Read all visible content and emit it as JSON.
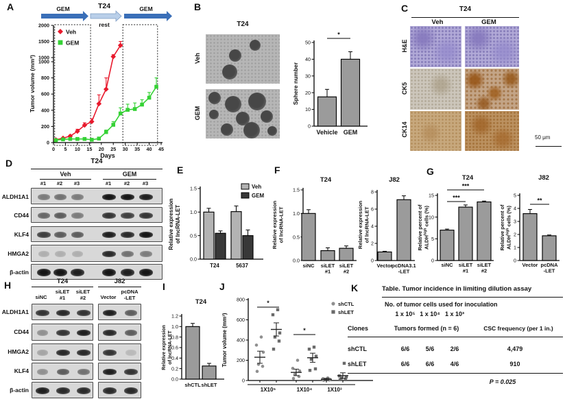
{
  "panels": {
    "A": {
      "letter": "A",
      "treatment_timeline": {
        "cell_line": "T24",
        "phases": [
          {
            "label": "GEM",
            "style": "dark"
          },
          {
            "label": "rest",
            "style": "light"
          },
          {
            "label": "GEM",
            "style": "dark"
          }
        ],
        "dark_arrow_color": "#3a6fb8",
        "light_arrow_color": "#b9cfe9"
      },
      "chart": {
        "type": "line",
        "xlabel": "Days",
        "ylabel": "Tumor volume (mm³)",
        "xlim": [
          0,
          45
        ],
        "x_ticks": [
          0,
          5,
          10,
          15,
          20,
          25,
          30,
          35,
          40,
          45
        ],
        "y_ticks_lower": [
          0,
          200,
          400,
          600,
          800,
          1000
        ],
        "y_ticks_upper": [
          1000,
          1500,
          2000
        ],
        "legend": [
          "Veh",
          "GEM"
        ],
        "series": [
          {
            "name": "Veh",
            "color": "#e8192c",
            "marker": "diamond",
            "x": [
              1,
              4,
              7,
              10,
              13,
              16,
              19,
              22,
              25,
              28
            ],
            "y": [
              35,
              55,
              80,
              140,
              215,
              260,
              480,
              660,
              1030,
              1380
            ],
            "err": [
              8,
              10,
              12,
              25,
              30,
              35,
              110,
              140,
              60,
              120
            ]
          },
          {
            "name": "GEM",
            "color": "#35d235",
            "marker": "square",
            "x": [
              1,
              4,
              7,
              10,
              13,
              16,
              19,
              22,
              25,
              28,
              31,
              34,
              37,
              40,
              43
            ],
            "y": [
              30,
              40,
              45,
              45,
              45,
              35,
              50,
              130,
              220,
              360,
              405,
              415,
              470,
              555,
              690
            ],
            "err": [
              6,
              8,
              8,
              8,
              8,
              8,
              10,
              25,
              40,
              70,
              70,
              75,
              60,
              65,
              110
            ]
          }
        ],
        "treatment_windows_days": [
          [
            0.5,
            15.5
          ],
          [
            29,
            43.5
          ]
        ]
      }
    },
    "B": {
      "letter": "B",
      "images": {
        "title": "T24",
        "rows": [
          {
            "label": "Veh"
          },
          {
            "label": "GEM"
          }
        ]
      },
      "chart": {
        "type": "bar",
        "ylabel": "Sphere number",
        "ylim": [
          0,
          50
        ],
        "y_ticks": [
          "0",
          "10",
          "20",
          "30",
          "40",
          "50"
        ],
        "categories": [
          "Vehicle",
          "GEM"
        ],
        "values": [
          17.5,
          40
        ],
        "errors": [
          4.5,
          4.5
        ],
        "bar_color": "#9b9b9b",
        "significance": "*"
      }
    },
    "C": {
      "letter": "C",
      "title": "T24",
      "columns": [
        "Veh",
        "GEM"
      ],
      "rows": [
        "H&E",
        "CK5",
        "CK14"
      ],
      "scale_bar": "50 μm"
    },
    "D": {
      "letter": "D",
      "title": "T24",
      "groups": [
        {
          "label": "Veh",
          "lanes": [
            "#1",
            "#2",
            "#3"
          ]
        },
        {
          "label": "GEM",
          "lanes": [
            "#1",
            "#2",
            "#3"
          ]
        }
      ],
      "blots": [
        {
          "protein": "ALDH1A1",
          "bands": [
            0.45,
            0.5,
            0.45,
            0.95,
            0.95,
            0.9
          ]
        },
        {
          "protein": "CD44",
          "bands": [
            0.55,
            0.6,
            0.45,
            0.8,
            0.75,
            0.8
          ]
        },
        {
          "protein": "KLF4",
          "bands": [
            0.75,
            0.6,
            0.6,
            0.9,
            0.85,
            0.95
          ]
        },
        {
          "protein": "HMGA2",
          "bands": [
            0.2,
            0.2,
            0.2,
            0.85,
            0.5,
            0.45
          ]
        },
        {
          "protein": "β-actin",
          "bands": [
            0.95,
            0.95,
            0.9,
            0.95,
            0.9,
            0.95
          ]
        }
      ]
    },
    "E": {
      "letter": "E",
      "chart": {
        "type": "grouped_bar",
        "ylabel_lines": [
          "Relative expression",
          "of lncRNA-LET"
        ],
        "ylim": [
          0,
          1.5
        ],
        "y_ticks": [
          "0.0",
          "0.5",
          "1.0",
          "1.5"
        ],
        "categories": [
          "T24",
          "5637"
        ],
        "series": [
          {
            "name": "Veh",
            "color": "#b3b3b3",
            "values": [
              1.0,
              1.01
            ],
            "errors": [
              0.08,
              0.12
            ]
          },
          {
            "name": "GEM",
            "color": "#383838",
            "values": [
              0.55,
              0.5
            ],
            "errors": [
              0.05,
              0.12
            ]
          }
        ]
      }
    },
    "F": {
      "letter": "F",
      "charts": [
        {
          "title": "T24",
          "ylabel_lines": [
            "Relative expression",
            "of lncRNA-LET"
          ],
          "ylim": [
            0,
            1.5
          ],
          "y_ticks": [
            "0.0",
            "0.5",
            "1.0",
            "1.5"
          ],
          "categories": [
            [
              "siNC"
            ],
            [
              "siLET",
              "#1"
            ],
            [
              "siLET",
              "#2"
            ]
          ],
          "values": [
            1.0,
            0.21,
            0.26
          ],
          "errors": [
            0.08,
            0.06,
            0.05
          ]
        },
        {
          "title": "J82",
          "ylabel_lines": [
            "Relative expression",
            "of lncRNA-LET"
          ],
          "ylim": [
            0,
            8
          ],
          "y_ticks": [
            "0",
            "2",
            "4",
            "6",
            "8"
          ],
          "categories": [
            [
              "Vector"
            ],
            [
              "pcDNA3.1",
              "-LET"
            ]
          ],
          "values": [
            1.0,
            7.1
          ],
          "errors": [
            0.08,
            0.45
          ]
        }
      ]
    },
    "G": {
      "letter": "G",
      "charts": [
        {
          "title": "T24",
          "ylabel_lines": [
            "Relative percent of",
            {
              "pre": "ALDH",
              "sup": "high",
              "post": " cells (%)"
            }
          ],
          "ylim": [
            0,
            15
          ],
          "y_ticks": [
            "0",
            "5",
            "10",
            "15"
          ],
          "categories": [
            [
              "siNC"
            ],
            [
              "siLET",
              "#1"
            ],
            [
              "siLET",
              "#2"
            ]
          ],
          "values": [
            7.0,
            12.3,
            13.5
          ],
          "errors": [
            0.25,
            0.5,
            0.2
          ],
          "significance": [
            {
              "from": 0,
              "to": 2,
              "label": "***"
            },
            {
              "from": 0,
              "to": 1,
              "label": "***"
            }
          ]
        },
        {
          "title": "J82",
          "ylabel_lines": [
            "Relative percent of",
            {
              "pre": "ALDH",
              "sup": "high",
              "post": " cells (%)"
            }
          ],
          "ylim": [
            0,
            5
          ],
          "y_ticks": [
            "0",
            "1",
            "2",
            "3",
            "4",
            "5"
          ],
          "categories": [
            [
              "Vector"
            ],
            [
              "pcDNA",
              "-LET"
            ]
          ],
          "values": [
            3.6,
            1.9
          ],
          "errors": [
            0.32,
            0.06
          ],
          "significance": [
            {
              "from": 0,
              "to": 1,
              "label": "**"
            }
          ]
        }
      ]
    },
    "H": {
      "letter": "H",
      "groups": [
        {
          "label": "T24",
          "lanes": [
            {
              "l1": "siNC"
            },
            {
              "l1": "siLET",
              "l2": "#1"
            },
            {
              "l1": "siLET",
              "l2": "#2"
            }
          ]
        },
        {
          "label": "J82",
          "lanes": [
            {
              "l1": "Vector"
            },
            {
              "l1": "pcDNA",
              "l2": "-LET"
            }
          ]
        }
      ],
      "blots": [
        {
          "protein": "ALDH1A1",
          "bands_t24": [
            0.8,
            0.85,
            0.8
          ],
          "bands_j82": [
            0.9,
            0.6
          ]
        },
        {
          "protein": "CD44",
          "bands_t24": [
            0.35,
            0.8,
            0.9
          ],
          "bands_j82": [
            0.85,
            0.6
          ]
        },
        {
          "protein": "HMGA2",
          "bands_t24": [
            0.25,
            0.85,
            0.85
          ],
          "bands_j82": [
            0.8,
            0.15
          ]
        },
        {
          "protein": "KLF4",
          "bands_t24": [
            0.35,
            0.6,
            0.5
          ],
          "bands_j82": [
            0.9,
            0.8
          ]
        },
        {
          "protein": "β-actin",
          "bands_t24": [
            0.9,
            0.85,
            0.85
          ],
          "bands_j82": [
            0.85,
            0.85
          ]
        }
      ]
    },
    "I": {
      "letter": "I",
      "chart": {
        "title": "T24",
        "ylabel_lines": [
          "Relative expression",
          "of lncRNA-LET"
        ],
        "ylim": [
          0,
          1.2
        ],
        "y_ticks": [
          "0.0",
          "0.2",
          "0.4",
          "0.6",
          "0.8",
          "1.0",
          "1.2"
        ],
        "categories": [
          [
            "shCTL"
          ],
          [
            "shLET"
          ]
        ],
        "values": [
          1.0,
          0.25
        ],
        "errors": [
          0.06,
          0.05
        ]
      }
    },
    "J": {
      "letter": "J",
      "chart": {
        "type": "scatter",
        "ylabel": "Tumor volume (mm³)",
        "ylim": [
          0,
          800
        ],
        "y_ticks": [
          0,
          200,
          400,
          600,
          800
        ],
        "groups": [
          "1X10⁵",
          "1X10⁴",
          "1X10³"
        ],
        "series": [
          {
            "name": "shCTL",
            "marker": "circle",
            "color": "#8f8f8f",
            "points": [
              [
                90,
                140,
                160,
                280,
                350,
                430
              ],
              [
                20,
                40,
                60,
                95,
                120,
                200
              ],
              [
                2,
                5,
                8,
                12,
                18,
                25
              ]
            ],
            "mean": [
              230,
              80,
              12
            ],
            "sem": [
              60,
              32,
              10
            ]
          },
          {
            "name": "shLET",
            "marker": "square",
            "color": "#6a6a6a",
            "points": [
              [
                310,
                390,
                430,
                470,
                650,
                700
              ],
              [
                100,
                115,
                210,
                240,
                310,
                330
              ],
              [
                8,
                15,
                25,
                35,
                45,
                170
              ]
            ],
            "mean": [
              505,
              225,
              48
            ],
            "sem": [
              65,
              45,
              28
            ]
          }
        ],
        "significance": [
          {
            "group": 0,
            "label": "*"
          },
          {
            "group": 1,
            "label": "*"
          }
        ]
      }
    },
    "K": {
      "letter": "K",
      "table": {
        "title": "Table. Tumor incidence in limiting dilution assay",
        "inoculation_header": "No. of tumor cells used for inoculation",
        "doses": [
          "1 x 10⁵",
          "1 x 10⁴",
          "1 x 10³"
        ],
        "col_clones": "Clones",
        "col_tumors": "Tumors formed (n = 6)",
        "col_csc": "CSC frequency (per 1 in.)",
        "rows": [
          {
            "clone": "shCTL",
            "tumors": [
              "6/6",
              "5/6",
              "2/6"
            ],
            "csc": "4,479"
          },
          {
            "clone": "shLET",
            "tumors": [
              "6/6",
              "6/6",
              "4/6"
            ],
            "csc": "910"
          }
        ],
        "p_value": "P = 0.025"
      }
    }
  }
}
